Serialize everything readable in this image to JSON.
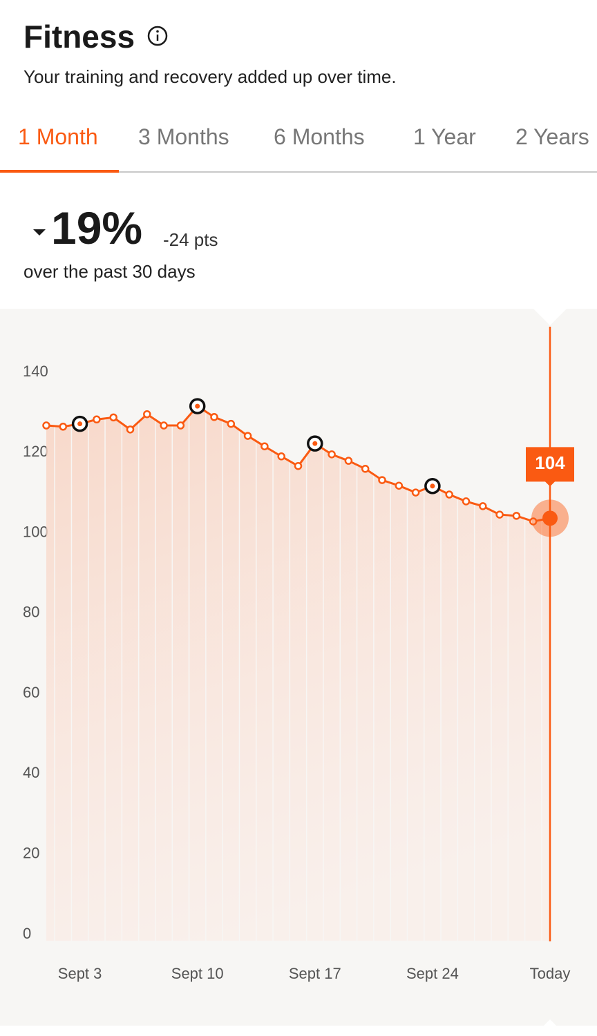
{
  "header": {
    "title": "Fitness",
    "subtitle": "Your training and recovery added up over time."
  },
  "tabs": {
    "items": [
      "1 Month",
      "3 Months",
      "6 Months",
      "1 Year",
      "2 Years"
    ],
    "active": 0
  },
  "summary": {
    "change": "19%",
    "points": "-24 pts",
    "period": "over the past 30 days"
  },
  "chart_data": {
    "type": "line",
    "categories": [
      null,
      null,
      "Sept 3",
      null,
      null,
      null,
      null,
      null,
      null,
      "Sept 10",
      null,
      null,
      null,
      null,
      null,
      null,
      "Sept 17",
      null,
      null,
      null,
      null,
      null,
      null,
      "Sept 24",
      null,
      null,
      null,
      null,
      null,
      null,
      "Today"
    ],
    "series": [
      {
        "name": "Fitness",
        "color": "#fa5a12",
        "values": [
          127.1,
          126.8,
          127.5,
          128.6,
          129.1,
          126.1,
          129.9,
          127.1,
          127.1,
          131.9,
          129.2,
          127.5,
          124.5,
          121.9,
          119.4,
          117.0,
          122.6,
          119.9,
          118.3,
          116.3,
          113.5,
          112.1,
          110.4,
          112.0,
          109.9,
          108.2,
          107.0,
          104.9,
          104.6,
          103.2,
          104
        ]
      }
    ],
    "ylim": [
      0,
      140
    ],
    "yticks": [
      0,
      20,
      40,
      60,
      80,
      100,
      120,
      140
    ],
    "grid": false
  }
}
